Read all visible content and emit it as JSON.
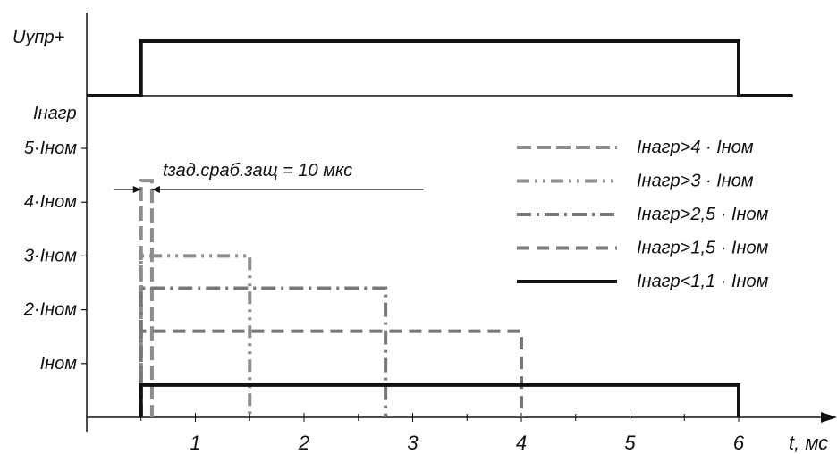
{
  "chart_data": {
    "type": "line",
    "xlabel": "t, мс",
    "x_ticks": [
      "1",
      "2",
      "3",
      "4",
      "5",
      "6"
    ],
    "xlim": [
      0,
      6.6
    ],
    "control_signal": {
      "label": "Uупр+",
      "on": 0.5,
      "off": 6.0
    },
    "current_axis": {
      "label": "Iнагр",
      "ticks": [
        {
          "value": 1,
          "label": "Iном"
        },
        {
          "value": 2,
          "label": "2·Iном"
        },
        {
          "value": 3,
          "label": "3·Iном"
        },
        {
          "value": 4,
          "label": "4·Iном"
        },
        {
          "value": 5,
          "label": "5·Iном"
        }
      ],
      "ylim": [
        0,
        6
      ]
    },
    "series": [
      {
        "name": "Iнагр>4 · Iном",
        "style": "dash-long",
        "level": 4.4,
        "t_on": 0.5,
        "t_off": 0.6
      },
      {
        "name": "Iнагр>3 · Iном",
        "style": "dash-dot-dot",
        "level": 3.0,
        "t_on": 0.5,
        "t_off": 1.5
      },
      {
        "name": "Iнагр>2,5 · Iном",
        "style": "dash-dot",
        "level": 2.4,
        "t_on": 0.5,
        "t_off": 2.75
      },
      {
        "name": "Iнагр>1,5 · Iном",
        "style": "dash",
        "level": 1.6,
        "t_on": 0.5,
        "t_off": 4.0
      },
      {
        "name": "Iнагр<1,1 · Iном",
        "style": "solid",
        "level": 0.6,
        "t_on": 0.5,
        "t_off": 6.0
      }
    ],
    "annotation": "tзад.сраб.защ = 10 мкс",
    "legend_position": "top-right"
  }
}
